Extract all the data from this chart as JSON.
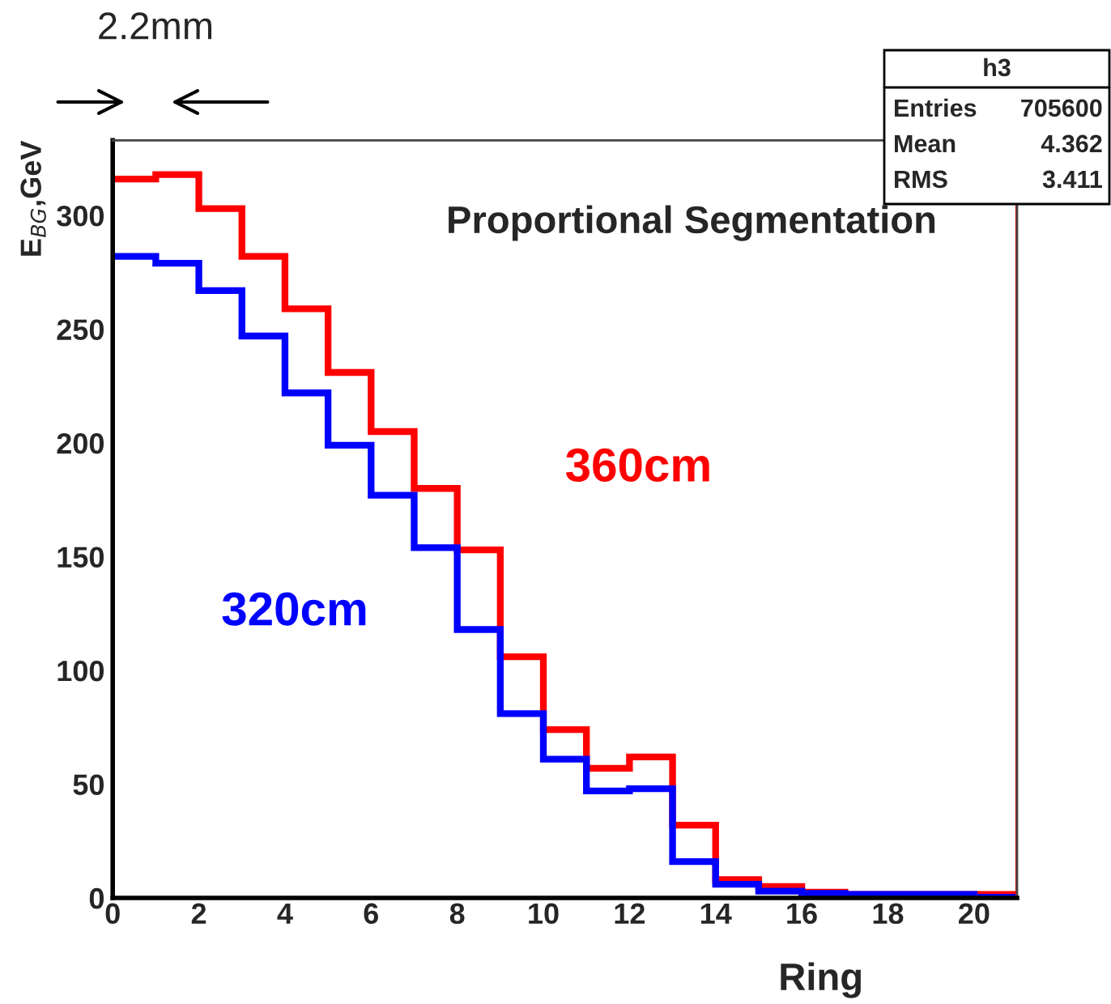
{
  "chart_data": {
    "type": "histogram",
    "title": "Proportional Segmentation",
    "xlabel": "Ring",
    "ylabel": "E$_{BG}$,GeV",
    "bins": [
      0,
      1,
      2,
      3,
      4,
      5,
      6,
      7,
      8,
      9,
      10,
      11,
      12,
      13,
      14,
      15,
      16,
      17,
      18,
      19,
      20,
      21
    ],
    "series": [
      {
        "name": "360cm",
        "color": "#ff0000",
        "values": [
          316,
          318,
          303,
          282,
          259,
          231,
          205,
          180,
          153,
          106,
          74,
          57,
          62,
          32,
          8,
          5,
          2.5,
          1.5,
          1.5,
          1.5,
          1.5
        ]
      },
      {
        "name": "320cm",
        "color": "#0000ff",
        "values": [
          282,
          279,
          267,
          247,
          222,
          199,
          177,
          154,
          118,
          81,
          61,
          47,
          48,
          16,
          6,
          3,
          2,
          1.5,
          1.5,
          1.5,
          0.3
        ]
      }
    ],
    "xlim": [
      0,
      21
    ],
    "ylim": [
      0,
      333
    ],
    "xticks": [
      0,
      2,
      4,
      6,
      8,
      10,
      12,
      14,
      16,
      18,
      20
    ],
    "yticks": [
      0,
      50,
      100,
      150,
      200,
      250,
      300
    ],
    "ref_lines": [
      {
        "axis": "x",
        "value": 21,
        "color": "#ff0000"
      }
    ],
    "grid": false,
    "annotations": [
      "2.2mm",
      "h3",
      "Entries 705600",
      "Mean 4.362",
      "RMS 3.411"
    ]
  }
}
